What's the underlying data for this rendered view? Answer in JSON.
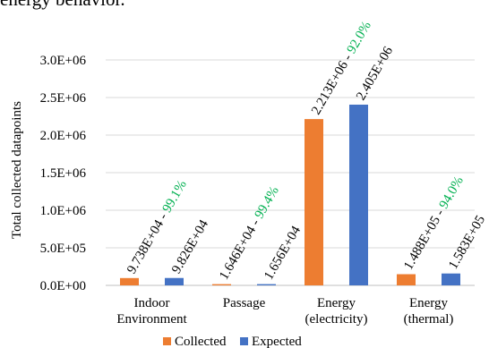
{
  "header_fragment": "energy behavior.",
  "chart_data": {
    "type": "bar",
    "ylabel": "Total collected datapoints",
    "ylim": [
      0,
      3000000
    ],
    "yticks": [
      "0.0E+00",
      "5.0E+05",
      "1.0E+06",
      "1.5E+06",
      "2.0E+06",
      "2.5E+06",
      "3.0E+06"
    ],
    "grid": true,
    "legend_position": "bottom",
    "categories": [
      [
        "Indoor",
        "Environment"
      ],
      [
        "Passage"
      ],
      [
        "Energy",
        "(electricity)"
      ],
      [
        "Energy",
        "(thermal)"
      ]
    ],
    "series": [
      {
        "name": "Collected",
        "color": "#ED7D31",
        "values": [
          97380,
          16460,
          2213000,
          148800
        ],
        "labels": [
          "9.738E+04",
          "1.646E+04",
          "2.213E+06",
          "1.488E+05"
        ],
        "percent_labels": [
          "99.1%",
          "99.4%",
          "92.0%",
          "94.0%"
        ]
      },
      {
        "name": "Expected",
        "color": "#4472C4",
        "values": [
          98260,
          16560,
          2405000,
          158300
        ],
        "labels": [
          "9.826E+04",
          "1.656E+04",
          "2.405E+06",
          "1.583E+05"
        ]
      }
    ],
    "label_separator": " - ",
    "percent_color": "#00B050"
  }
}
